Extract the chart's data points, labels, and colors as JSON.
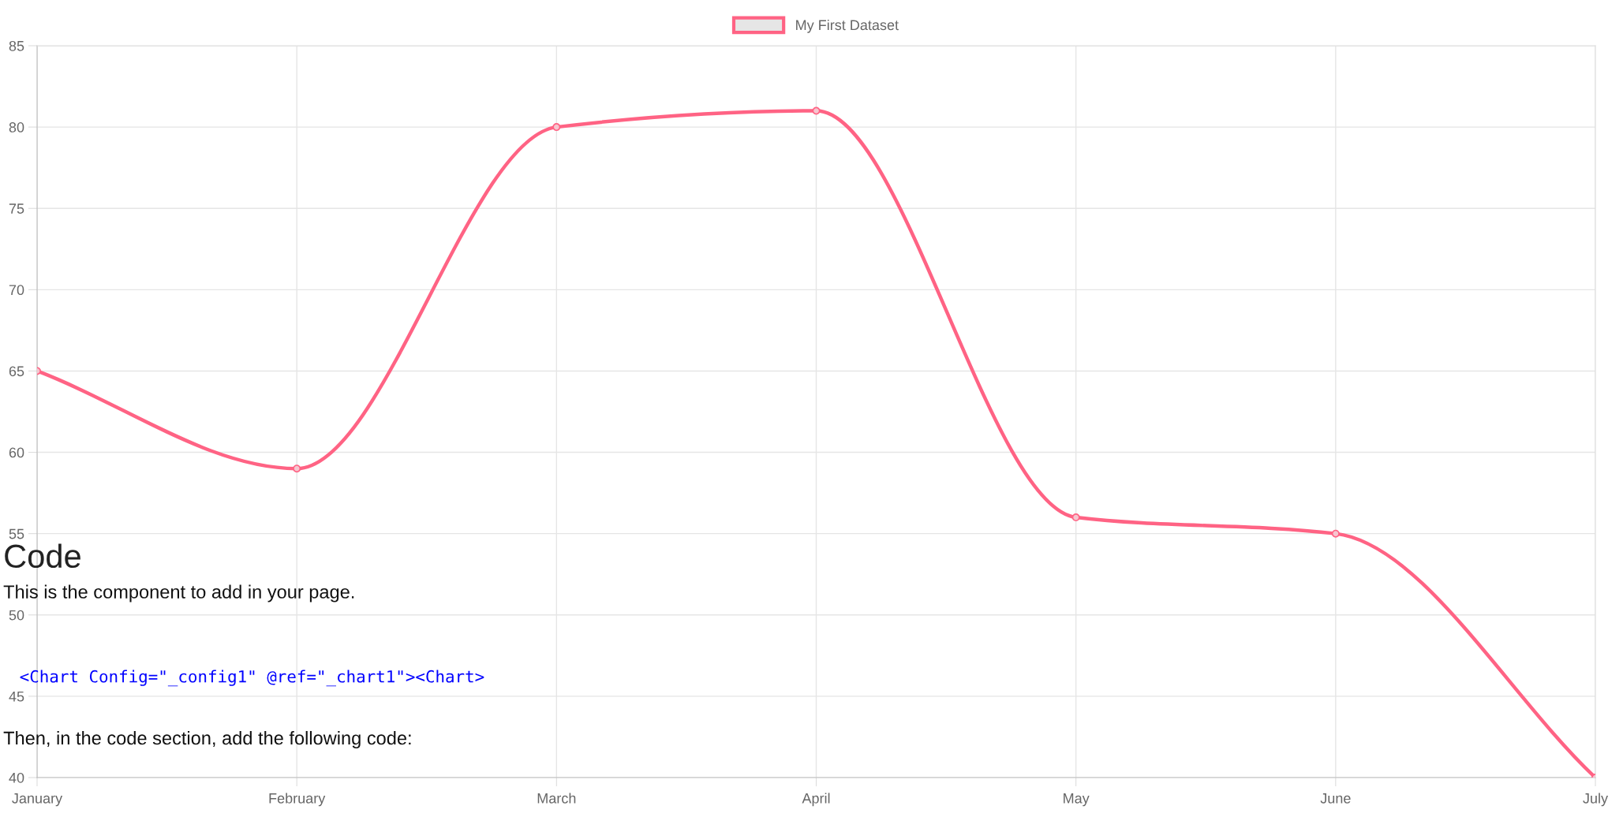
{
  "chart_data": {
    "type": "line",
    "categories": [
      "January",
      "February",
      "March",
      "April",
      "May",
      "June",
      "July"
    ],
    "series": [
      {
        "name": "My First Dataset",
        "color": "#ff6384",
        "values": [
          65,
          59,
          80,
          81,
          56,
          55,
          40
        ]
      }
    ],
    "ylim": [
      40,
      85
    ],
    "yticks": [
      40,
      45,
      50,
      55,
      60,
      65,
      70,
      75,
      80,
      85
    ],
    "grid": true,
    "legend": "top",
    "marker": "circle",
    "line_style": "solid",
    "annotations": [
      "Code",
      "This is the component to add in your page.",
      "<Chart Config=\"_config1\" @ref=\"_chart1\"><Chart>",
      "Then, in the code section, add the following code:"
    ]
  }
}
